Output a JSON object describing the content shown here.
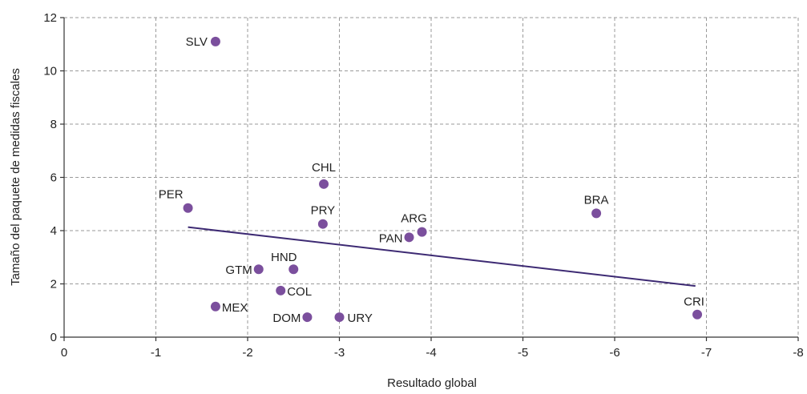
{
  "chart_data": {
    "type": "scatter",
    "xlabel": "Resultado global",
    "ylabel": "Tamaño del paquete de medidas fiscales",
    "xlim": [
      0,
      -8
    ],
    "ylim": [
      0,
      12
    ],
    "xticks": [
      0,
      -1,
      -2,
      -3,
      -4,
      -5,
      -6,
      -7,
      -8
    ],
    "yticks": [
      0,
      2,
      4,
      6,
      8,
      10,
      12
    ],
    "grid": true,
    "legend": "none",
    "point_color": "#7b4f9d",
    "trend_color": "#3d2a73",
    "points": [
      {
        "label": "SLV",
        "x": -1.65,
        "y": 11.1
      },
      {
        "label": "PER",
        "x": -1.35,
        "y": 4.85
      },
      {
        "label": "CHL",
        "x": -2.83,
        "y": 5.75
      },
      {
        "label": "PRY",
        "x": -2.82,
        "y": 4.25
      },
      {
        "label": "ARG",
        "x": -3.9,
        "y": 3.95
      },
      {
        "label": "PAN",
        "x": -3.76,
        "y": 3.75
      },
      {
        "label": "BRA",
        "x": -5.8,
        "y": 4.65
      },
      {
        "label": "HND",
        "x": -2.5,
        "y": 2.55
      },
      {
        "label": "GTM",
        "x": -2.12,
        "y": 2.55
      },
      {
        "label": "COL",
        "x": -2.36,
        "y": 1.75
      },
      {
        "label": "MEX",
        "x": -1.65,
        "y": 1.15
      },
      {
        "label": "DOM",
        "x": -2.65,
        "y": 0.75
      },
      {
        "label": "URY",
        "x": -3.0,
        "y": 0.75
      },
      {
        "label": "CRI",
        "x": -6.9,
        "y": 0.85
      }
    ],
    "trendline": {
      "x": [
        -1.35,
        -6.88
      ],
      "y": [
        4.13,
        1.92
      ]
    }
  }
}
